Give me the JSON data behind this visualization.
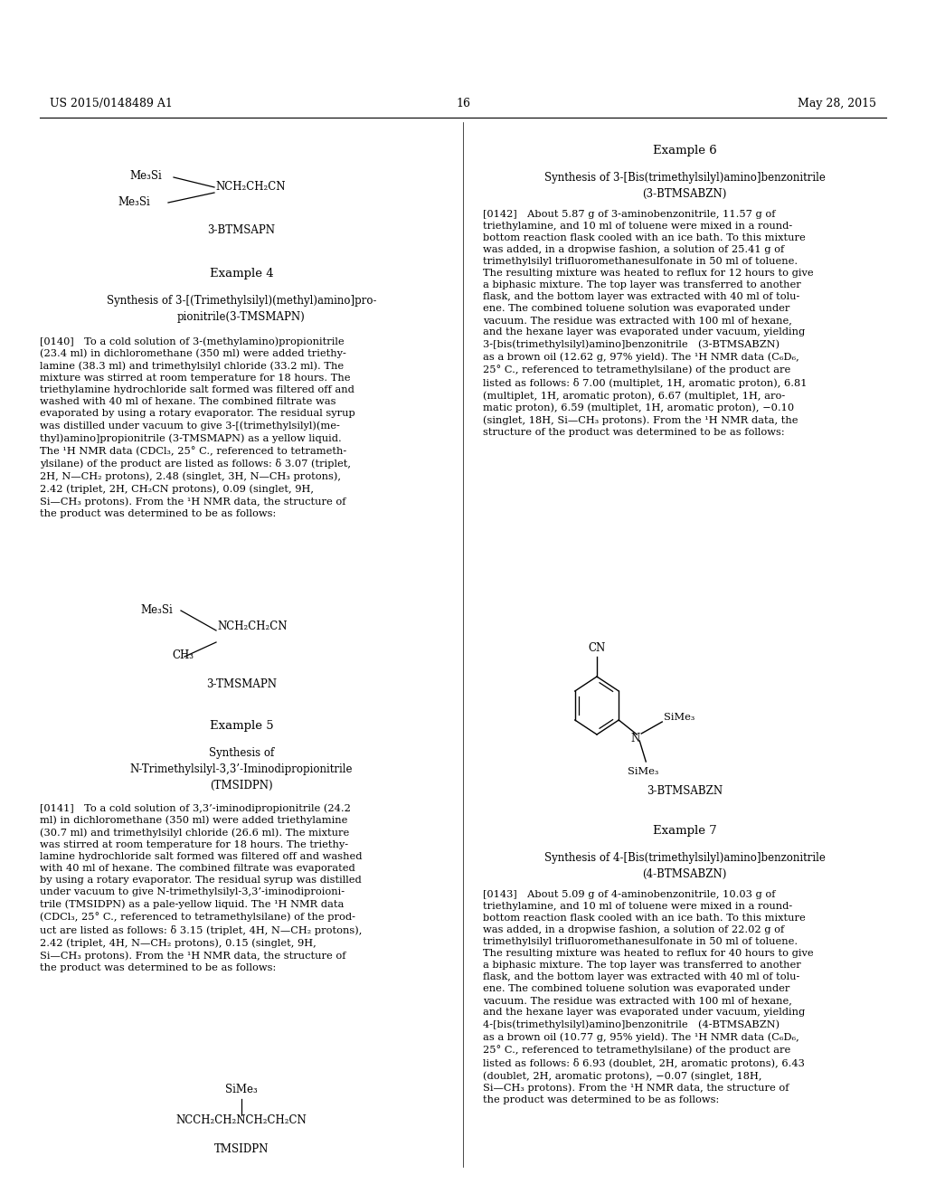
{
  "header_left": "US 2015/0148489 A1",
  "header_right": "May 28, 2015",
  "header_center": "16",
  "bg": "#ffffff",
  "ex4_title": "Example 4",
  "ex4_sub1": "Synthesis of 3-[(Trimethylsilyl)(methyl)amino]pro-",
  "ex4_sub2": "pionitrile(3-TMSMAPN)",
  "ex4_para": "[0140] To a cold solution of 3-(methylamino)propionitrile\n(23.4 ml) in dichloromethane (350 ml) were added triethy-\nlamine (38.3 ml) and trimethylsilyl chloride (33.2 ml). The\nmixture was stirred at room temperature for 18 hours. The\ntriethylamine hydrochloride salt formed was filtered off and\nwashed with 40 ml of hexane. The combined filtrate was\nevaporated by using a rotary evaporator. The residual syrup\nwas distilled under vacuum to give 3-[(trimethylsilyl)(me-\nthyl)amino]propionitrile (3-TMSMAPN) as a yellow liquid.\nThe ¹H NMR data (CDCl₃, 25° C., referenced to tetrameth-\nylsilane) of the product are listed as follows: δ 3.07 (triplet,\n2H, N—CH₂ protons), 2.48 (singlet, 3H, N—CH₃ protons),\n2.42 (triplet, 2H, CH₂CN protons), 0.09 (singlet, 9H,\nSi—CH₃ protons). From the ¹H NMR data, the structure of\nthe product was determined to be as follows:",
  "ex5_title": "Example 5",
  "ex5_sub1": "Synthesis of",
  "ex5_sub2": "N-Trimethylsilyl-3,3’-Iminodipropionitrile",
  "ex5_sub3": "(TMSIDPN)",
  "ex5_para": "[0141] To a cold solution of 3,3’-iminodipropionitrile (24.2\nml) in dichloromethane (350 ml) were added triethylamine\n(30.7 ml) and trimethylsilyl chloride (26.6 ml). The mixture\nwas stirred at room temperature for 18 hours. The triethy-\nlamine hydrochloride salt formed was filtered off and washed\nwith 40 ml of hexane. The combined filtrate was evaporated\nby using a rotary evaporator. The residual syrup was distilled\nunder vacuum to give N-trimethylsilyl-3,3’-iminodiproioni-\ntrile (TMSIDPN) as a pale-yellow liquid. The ¹H NMR data\n(CDCl₃, 25° C., referenced to tetramethylsilane) of the prod-\nuct are listed as follows: δ 3.15 (triplet, 4H, N—CH₂ protons),\n2.42 (triplet, 4H, N—CH₂ protons), 0.15 (singlet, 9H,\nSi—CH₃ protons). From the ¹H NMR data, the structure of\nthe product was determined to be as follows:",
  "ex6_title": "Example 6",
  "ex6_sub1": "Synthesis of 3-[Bis(trimethylsilyl)amino]benzonitrile",
  "ex6_sub2": "(3-BTMSABZN)",
  "ex6_para": "[0142] About 5.87 g of 3-aminobenzonitrile, 11.57 g of\ntriethylamine, and 10 ml of toluene were mixed in a round-\nbottom reaction flask cooled with an ice bath. To this mixture\nwas added, in a dropwise fashion, a solution of 25.41 g of\ntrimethylsilyl trifluoromethanesulfonate in 50 ml of toluene.\nThe resulting mixture was heated to reflux for 12 hours to give\na biphasic mixture. The top layer was transferred to another\nflask, and the bottom layer was extracted with 40 ml of tolu-\nene. The combined toluene solution was evaporated under\nvacuum. The residue was extracted with 100 ml of hexane,\nand the hexane layer was evaporated under vacuum, yielding\n3-[bis(trimethylsilyl)amino]benzonitrile (3-BTMSABZN)\nas a brown oil (12.62 g, 97% yield). The ¹H NMR data (C₆D₆,\n25° C., referenced to tetramethylsilane) of the product are\nlisted as follows: δ 7.00 (multiplet, 1H, aromatic proton), 6.81\n(multiplet, 1H, aromatic proton), 6.67 (multiplet, 1H, aro-\nmatic proton), 6.59 (multiplet, 1H, aromatic proton), −0.10\n(singlet, 18H, Si—CH₃ protons). From the ¹H NMR data, the\nstructure of the product was determined to be as follows:",
  "ex7_title": "Example 7",
  "ex7_sub1": "Synthesis of 4-[Bis(trimethylsilyl)amino]benzonitrile",
  "ex7_sub2": "(4-BTMSABZN)",
  "ex7_para": "[0143] About 5.09 g of 4-aminobenzonitrile, 10.03 g of\ntriethylamine, and 10 ml of toluene were mixed in a round-\nbottom reaction flask cooled with an ice bath. To this mixture\nwas added, in a dropwise fashion, a solution of 22.02 g of\ntrimethylsilyl trifluoromethanesulfonate in 50 ml of toluene.\nThe resulting mixture was heated to reflux for 40 hours to give\na biphasic mixture. The top layer was transferred to another\nflask, and the bottom layer was extracted with 40 ml of tolu-\nene. The combined toluene solution was evaporated under\nvacuum. The residue was extracted with 100 ml of hexane,\nand the hexane layer was evaporated under vacuum, yielding\n4-[bis(trimethylsilyl)amino]benzonitrile (4-BTMSABZN)\nas a brown oil (10.77 g, 95% yield). The ¹H NMR data (C₆D₆,\n25° C., referenced to tetramethylsilane) of the product are\nlisted as follows: δ 6.93 (doublet, 2H, aromatic protons), 6.43\n(doublet, 2H, aromatic protons), −0.07 (singlet, 18H,\nSi—CH₃ protons). From the ¹H NMR data, the structure of\nthe product was determined to be as follows:"
}
